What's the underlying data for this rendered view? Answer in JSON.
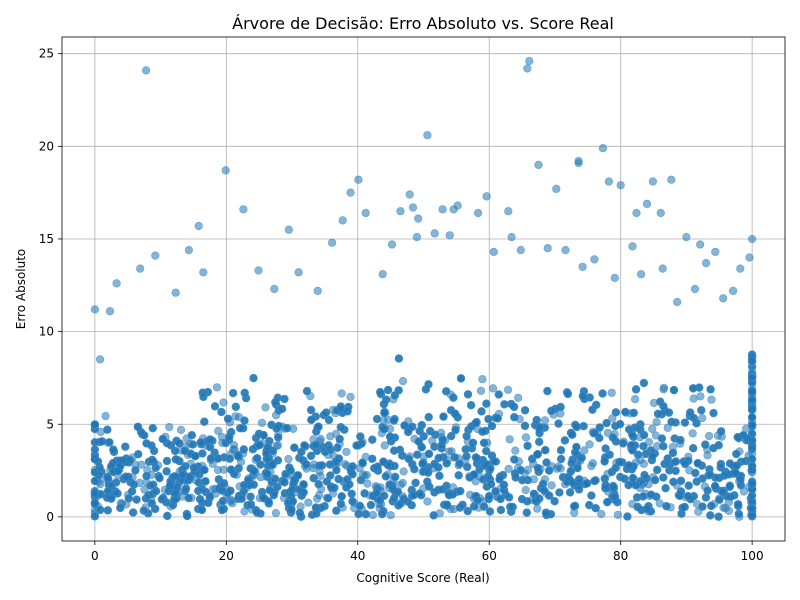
{
  "chart_data": {
    "type": "scatter",
    "title": "Árvore de Decisão: Erro Absoluto vs. Score Real",
    "xlabel": "Cognitive Score (Real)",
    "ylabel": "Erro Absoluto",
    "xlim": [
      -5,
      105
    ],
    "ylim": [
      -1.3,
      25.9
    ],
    "xticks": [
      0,
      20,
      40,
      60,
      80,
      100
    ],
    "yticks": [
      0,
      5,
      10,
      15,
      20,
      25
    ],
    "grid": true,
    "marker_color": "#1f77b4",
    "marker_edge_color": "#4a8fc9",
    "marker_opacity": 0.55,
    "series": [
      {
        "values_x": [
          7.8,
          66.1,
          65.8,
          50.6,
          77.3,
          19.9,
          73.6,
          73.6,
          67.5,
          40.1,
          47.9,
          38.9,
          70.2,
          78.2,
          80.0,
          84.9,
          87.7,
          29.5,
          49.2,
          48.4,
          22.6,
          46.5,
          52.9,
          55.2,
          54.6,
          54.0,
          82.4,
          84.0,
          86.1,
          62.9,
          59.6,
          58.3,
          51.7,
          41.2,
          37.7,
          15.8,
          14.3,
          9.2,
          6.9,
          3.3,
          0.0,
          0.8,
          2.3,
          100.0,
          99.6,
          97.1,
          94.4,
          92.1,
          90.0,
          12.3,
          16.5,
          24.9,
          27.3,
          31.0,
          33.9,
          36.1,
          43.8,
          45.2,
          49.0,
          60.7,
          63.4,
          64.8,
          68.9,
          71.6,
          74.2,
          76.0,
          79.1,
          81.8,
          83.1,
          86.4,
          88.6,
          91.3,
          93.0,
          95.6,
          98.2
        ],
        "values_y": [
          24.1,
          24.6,
          24.2,
          20.6,
          19.9,
          18.7,
          19.2,
          19.1,
          19.0,
          18.2,
          17.4,
          17.5,
          17.7,
          18.1,
          17.9,
          18.1,
          18.2,
          15.5,
          16.1,
          16.7,
          16.6,
          16.5,
          16.6,
          16.8,
          16.6,
          15.2,
          16.4,
          16.9,
          16.4,
          16.5,
          17.3,
          16.4,
          15.3,
          16.4,
          16.0,
          15.7,
          14.4,
          14.1,
          13.4,
          12.6,
          11.2,
          8.5,
          11.1,
          15.0,
          14.0,
          12.2,
          14.3,
          14.7,
          15.1,
          12.1,
          13.2,
          13.3,
          12.3,
          13.2,
          12.2,
          14.8,
          13.1,
          14.7,
          15.1,
          14.3,
          15.1,
          14.4,
          14.5,
          14.4,
          13.5,
          13.9,
          12.9,
          14.6,
          13.1,
          13.4,
          11.6,
          12.3,
          13.7,
          11.8,
          13.4
        ]
      }
    ],
    "dense_region": {
      "description_x_range": [
        0,
        100
      ],
      "y_max_typical": 11,
      "n_points_approx": 9000
    }
  }
}
